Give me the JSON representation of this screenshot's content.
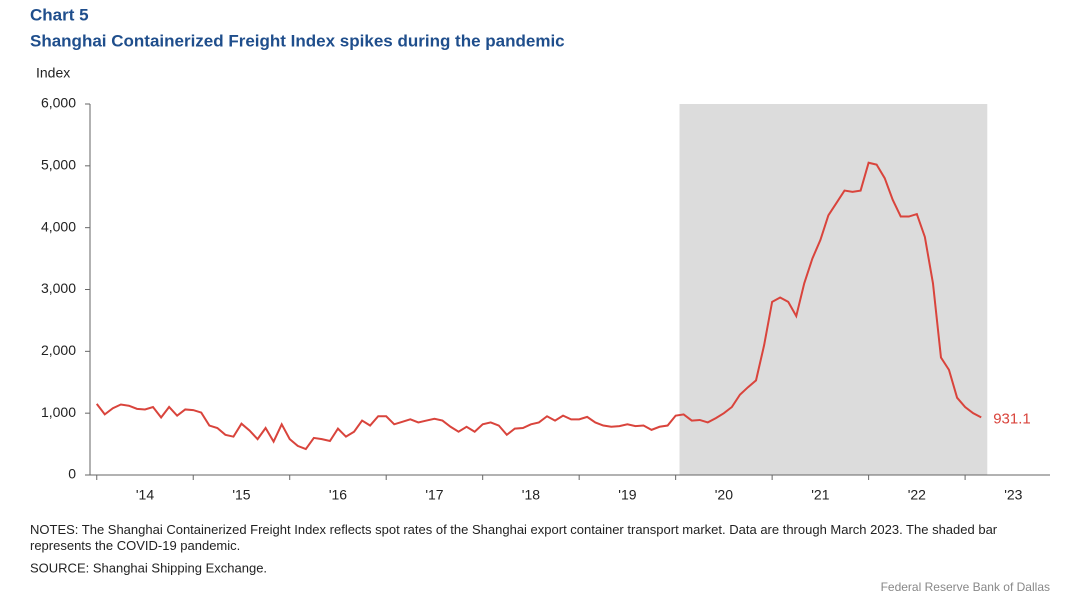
{
  "chart_data": {
    "type": "line",
    "chart_label": "Chart 5",
    "title": "Shanghai Containerized Freight Index spikes during the pandemic",
    "y_label": "Index",
    "notes": "NOTES: The Shanghai Containerized Freight Index reflects spot rates of the Shanghai export container transport market. Data are through March 2023. The shaded bar represents the COVID-19 pandemic.",
    "source": "SOURCE: Shanghai Shipping Exchange.",
    "credit": "Federal Reserve Bank of Dallas",
    "xlim": [
      2013.93,
      2023.88
    ],
    "ylim": [
      0,
      6000
    ],
    "yticks": [
      0,
      {
        "value": 1000,
        "label": "1,000"
      },
      {
        "value": 2000,
        "label": "2,000"
      },
      {
        "value": 3000,
        "label": "3,000"
      },
      {
        "value": 4000,
        "label": "4,000"
      },
      {
        "value": 5000,
        "label": "5,000"
      },
      {
        "value": 6000,
        "label": "6,000"
      }
    ],
    "xticks": [
      {
        "value": 2014.5,
        "label": "'14"
      },
      {
        "value": 2015.5,
        "label": "'15"
      },
      {
        "value": 2016.5,
        "label": "'16"
      },
      {
        "value": 2017.5,
        "label": "'17"
      },
      {
        "value": 2018.5,
        "label": "'18"
      },
      {
        "value": 2019.5,
        "label": "'19"
      },
      {
        "value": 2020.5,
        "label": "'20"
      },
      {
        "value": 2021.5,
        "label": "'21"
      },
      {
        "value": 2022.5,
        "label": "'22"
      },
      {
        "value": 2023.5,
        "label": "'23"
      }
    ],
    "shaded": [
      2020.04,
      2023.23
    ],
    "shade_color": "#dcdcdc",
    "x": [
      2014,
      2014.083,
      2014.167,
      2014.25,
      2014.333,
      2014.417,
      2014.5,
      2014.583,
      2014.667,
      2014.75,
      2014.833,
      2014.917,
      2015,
      2015.083,
      2015.167,
      2015.25,
      2015.333,
      2015.417,
      2015.5,
      2015.583,
      2015.667,
      2015.75,
      2015.833,
      2015.917,
      2016,
      2016.083,
      2016.167,
      2016.25,
      2016.333,
      2016.417,
      2016.5,
      2016.583,
      2016.667,
      2016.75,
      2016.833,
      2016.917,
      2017,
      2017.083,
      2017.167,
      2017.25,
      2017.333,
      2017.417,
      2017.5,
      2017.583,
      2017.667,
      2017.75,
      2017.833,
      2017.917,
      2018,
      2018.083,
      2018.167,
      2018.25,
      2018.333,
      2018.417,
      2018.5,
      2018.583,
      2018.667,
      2018.75,
      2018.833,
      2018.917,
      2019,
      2019.083,
      2019.167,
      2019.25,
      2019.333,
      2019.417,
      2019.5,
      2019.583,
      2019.667,
      2019.75,
      2019.833,
      2019.917,
      2020,
      2020.083,
      2020.167,
      2020.25,
      2020.333,
      2020.417,
      2020.5,
      2020.583,
      2020.667,
      2020.75,
      2020.833,
      2020.917,
      2021,
      2021.083,
      2021.167,
      2021.25,
      2021.333,
      2021.417,
      2021.5,
      2021.583,
      2021.667,
      2021.75,
      2021.833,
      2021.917,
      2022,
      2022.083,
      2022.167,
      2022.25,
      2022.333,
      2022.417,
      2022.5,
      2022.583,
      2022.667,
      2022.75,
      2022.833,
      2022.917,
      2023,
      2023.083,
      2023.167
    ],
    "series": [
      {
        "color": "#d9443c",
        "values": [
          1150,
          980,
          1080,
          1140,
          1120,
          1070,
          1060,
          1100,
          930,
          1100,
          960,
          1060,
          1050,
          1010,
          800,
          760,
          650,
          620,
          830,
          720,
          580,
          760,
          540,
          820,
          580,
          470,
          420,
          600,
          580,
          550,
          750,
          620,
          700,
          880,
          800,
          950,
          950,
          820,
          860,
          900,
          850,
          880,
          910,
          880,
          780,
          700,
          780,
          700,
          820,
          850,
          800,
          650,
          750,
          760,
          820,
          850,
          950,
          880,
          960,
          900,
          900,
          940,
          850,
          800,
          780,
          790,
          820,
          790,
          800,
          730,
          780,
          800,
          960,
          980,
          880,
          890,
          850,
          920,
          1000,
          1100,
          1300,
          1420,
          1530,
          2100,
          2800,
          2870,
          2800,
          2570,
          3100,
          3500,
          3800,
          4200,
          4400,
          4600,
          4580,
          4600,
          5050,
          5020,
          4800,
          4450,
          4180,
          4180,
          4220,
          3850,
          3100,
          1900,
          1700,
          1250,
          1100,
          1000,
          931.1
        ],
        "end_label": "931.1"
      }
    ]
  }
}
